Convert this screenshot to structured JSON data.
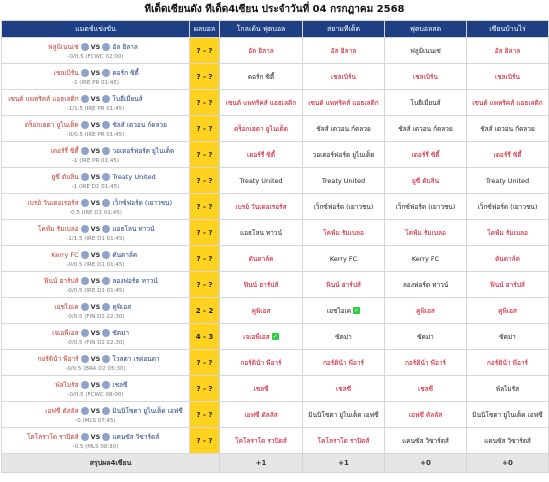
{
  "title": "ทีเด็ดเซียนดัง ทีเด็ด4เซียน ประจำวันที่ 04 กรกฎาคม 2568",
  "header": [
    "แมตช์แข่งขัน",
    "ผลบอล",
    "โกลเด้น ฟุตบอล",
    "สยามทีเด็ด",
    "ฟุตบอลสด",
    "เซียนบ้านไร่"
  ],
  "vs": "VS",
  "pick_colors": {
    "red": "#d0021b",
    "black": "#222222"
  },
  "rows": [
    {
      "home": "ฟลูมิเนนเซ่",
      "away": "อัล ฮิลาล",
      "handicap": "-0/0.5 (FCWC 02:00)",
      "result": "? - ?",
      "picks": [
        {
          "text": "อัล ฮิลาล",
          "color": "red"
        },
        {
          "text": "อัล ฮิลาล",
          "color": "red"
        },
        {
          "text": "ฟลูมิเนนเซ่",
          "color": "black"
        },
        {
          "text": "อัล ฮิลาล",
          "color": "red"
        }
      ]
    },
    {
      "home": "เชลเบิร์น",
      "away": "คอร์ก ซิตี้",
      "handicap": "-1 (IRE PR 01:45)",
      "result": "? - ?",
      "picks": [
        {
          "text": "คอร์ก ซิตี้",
          "color": "black"
        },
        {
          "text": "เชลเบิร์น",
          "color": "red"
        },
        {
          "text": "เชลเบิร์น",
          "color": "red"
        },
        {
          "text": "เชลเบิร์น",
          "color": "red"
        }
      ]
    },
    {
      "home": "เซนต์ แพทริคส์ แอธเลติก",
      "away": "โบฮีเมี่ยนส์",
      "handicap": "-1/1.5 (IRE PR 01:45)",
      "result": "? - ?",
      "picks": [
        {
          "text": "เซนต์ แพทริคส์ แอธเลติก",
          "color": "red"
        },
        {
          "text": "เซนต์ แพทริคส์ แอธเลติก",
          "color": "red"
        },
        {
          "text": "โบฮีเมี่ยนส์",
          "color": "black"
        },
        {
          "text": "เซนต์ แพทริคส์ แอธเลติก",
          "color": "red"
        }
      ]
    },
    {
      "home": "ดร็อกเฮดา ยูไนเต็ด",
      "away": "ชัลส์ เดวอน ก์ดลวย",
      "handicap": "-0/0.5 (IRE PR 01:45)",
      "result": "? - ?",
      "picks": [
        {
          "text": "ดร็อกเฮดา ยูไนเต็ด",
          "color": "red"
        },
        {
          "text": "ชัลส์ เดวอน ก์ดลวย",
          "color": "black"
        },
        {
          "text": "ชัลส์ เดวอน ก์ดลวย",
          "color": "black"
        },
        {
          "text": "ชัลส์ เดวอน ก์ดลวย",
          "color": "black"
        }
      ]
    },
    {
      "home": "เดอร์รี่ ซิตี้",
      "away": "วอเตอร์ฟอร์ด ยูไนเต็ด",
      "handicap": "-1 (IRE PR 01:45)",
      "result": "? - ?",
      "picks": [
        {
          "text": "เดอร์รี่ ซิตี้",
          "color": "red"
        },
        {
          "text": "วอเตอร์ฟอร์ด ยูไนเต็ด",
          "color": "black"
        },
        {
          "text": "เดอร์รี่ ซิตี้",
          "color": "red"
        },
        {
          "text": "เดอร์รี่ ซิตี้",
          "color": "red"
        }
      ]
    },
    {
      "home": "ยูซี ดับลิน",
      "away": "Treaty United",
      "handicap": "-1 (IRE D1 01:45)",
      "result": "? - ?",
      "picks": [
        {
          "text": "Treaty United",
          "color": "black"
        },
        {
          "text": "Treaty United",
          "color": "black"
        },
        {
          "text": "ยูซี ดับลิน",
          "color": "red"
        },
        {
          "text": "Treaty United",
          "color": "black"
        }
      ]
    },
    {
      "home": "เบรย์ วันเดอเรอร์ส",
      "away": "เว็กซ์ฟอร์ด (เยาวชน)",
      "handicap": "-0.5 (IRE D1 01:45)",
      "result": "? - ?",
      "picks": [
        {
          "text": "เบรย์ วันเดอเรอร์ส",
          "color": "red"
        },
        {
          "text": "เว็กซ์ฟอร์ด (เยาวชน)",
          "color": "black"
        },
        {
          "text": "เว็กซ์ฟอร์ด (เยาวชน)",
          "color": "black"
        },
        {
          "text": "เว็กซ์ฟอร์ด (เยาวชน)",
          "color": "black"
        }
      ]
    },
    {
      "home": "โคฟ์ม รัมเบลอ",
      "away": "แอธโลน ทาวน์",
      "handicap": "-1/1.5 (IRE D1 01:45)",
      "result": "? - ?",
      "picks": [
        {
          "text": "แอธโลน ทาวน์",
          "color": "black"
        },
        {
          "text": "โคฟ์ม รัมเบลอ",
          "color": "red"
        },
        {
          "text": "โคฟ์ม รัมเบลอ",
          "color": "red"
        },
        {
          "text": "โคฟ์ม รัมเบลอ",
          "color": "red"
        }
      ]
    },
    {
      "home": "Kerry FC",
      "away": "ดันดาล์ค",
      "handicap": "-0/0.5 (IRE D1 01:45)",
      "result": "? - ?",
      "picks": [
        {
          "text": "ดันดาล์ค",
          "color": "red"
        },
        {
          "text": "Kerry FC",
          "color": "black"
        },
        {
          "text": "Kerry FC",
          "color": "black"
        },
        {
          "text": "ดันดาล์ค",
          "color": "red"
        }
      ]
    },
    {
      "home": "ฟินน์ ฮาร์ปส์",
      "away": "ลองฟอร์ด ทาวน์",
      "handicap": "-0/0.5 (IRE D1 01:45)",
      "result": "? - ?",
      "picks": [
        {
          "text": "ฟินน์ ฮาร์ปส์",
          "color": "red"
        },
        {
          "text": "ฟินน์ ฮาร์ปส์",
          "color": "red"
        },
        {
          "text": "ลองฟอร์ด ทาวน์",
          "color": "black"
        },
        {
          "text": "ฟินน์ ฮาร์ปส์",
          "color": "red"
        }
      ]
    },
    {
      "home": "เอชไอเค",
      "away": "คูพิเอส",
      "handicap": "-0/0.5 (FIN D1 22:30)",
      "result": "2 - 2",
      "picks": [
        {
          "text": "คูพิเอส",
          "color": "red"
        },
        {
          "text": "เอชไอเค",
          "color": "black",
          "correct": true
        },
        {
          "text": "คูพิเอส",
          "color": "red"
        },
        {
          "text": "คูพิเอส",
          "color": "red"
        }
      ]
    },
    {
      "home": "เจเอพีเอส",
      "away": "ซัคม่า",
      "handicap": "-0/0.5 (FIN D2 22:30)",
      "result": "4 - 3",
      "picks": [
        {
          "text": "เจเอพีเอส",
          "color": "red",
          "correct": true
        },
        {
          "text": "ซัคม่า",
          "color": "black"
        },
        {
          "text": "ซัคม่า",
          "color": "black"
        },
        {
          "text": "ซัคม่า",
          "color": "black"
        }
      ]
    },
    {
      "home": "กอร์ดิน้า พีอาร์",
      "away": "โวลตา เรดอนดา",
      "handicap": "-0/0.5 (BRA D2 05:30)",
      "result": "? - ?",
      "picks": [
        {
          "text": "กอร์ดิน้า พีอาร์",
          "color": "red"
        },
        {
          "text": "กอร์ดิน้า พีอาร์",
          "color": "red"
        },
        {
          "text": "กอร์ดิน้า พีอาร์",
          "color": "red"
        },
        {
          "text": "กอร์ดิน้า พีอาร์",
          "color": "red"
        }
      ]
    },
    {
      "home": "พัลไมรัส",
      "away": "เชลซี",
      "handicap": "-0/0.5 (FCWC 08:00)",
      "result": "? - ?",
      "picks": [
        {
          "text": "เชลซี",
          "color": "red"
        },
        {
          "text": "เชลซี",
          "color": "red"
        },
        {
          "text": "เชลซี",
          "color": "red"
        },
        {
          "text": "พัลไมรัส",
          "color": "black"
        }
      ]
    },
    {
      "home": "เอฟซี ดัลลัส",
      "away": "มินนิโซตา ยูไนเต็ด เอฟซี",
      "handicap": "-0 (MLS 07:45)",
      "result": "? - ?",
      "picks": [
        {
          "text": "เอฟซี ดัลลัส",
          "color": "red"
        },
        {
          "text": "มินนิโซตา ยูไนเต็ด เอฟซี",
          "color": "black"
        },
        {
          "text": "เอฟซี ดัลลัส",
          "color": "red"
        },
        {
          "text": "มินนิโซตา ยูไนเต็ด เอฟซี",
          "color": "black"
        }
      ]
    },
    {
      "home": "โคโลราโด ราปิดส์",
      "away": "แคนซัส วิซาร์ดส์",
      "handicap": "-0.5 (MLS 08:30)",
      "result": "? - ?",
      "picks": [
        {
          "text": "โคโลราโด ราปิดส์",
          "color": "red"
        },
        {
          "text": "โคโลราโด ราปิดส์",
          "color": "red"
        },
        {
          "text": "แคนซัส วิซาร์ดส์",
          "color": "black"
        },
        {
          "text": "แคนซัส วิซาร์ดส์",
          "color": "black"
        }
      ]
    }
  ],
  "summary": {
    "label": "สรุปผล4เซียน",
    "scores": [
      "+1",
      "+1",
      "+0",
      "+0"
    ]
  }
}
